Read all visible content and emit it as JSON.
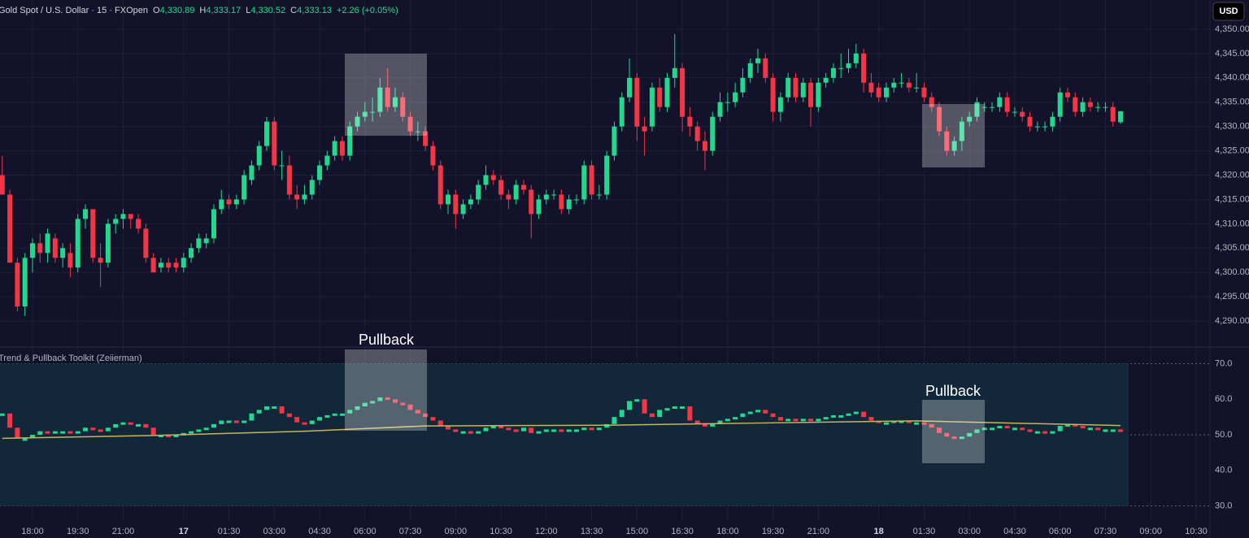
{
  "header": {
    "symbol": "Gold Spot / U.S. Dollar · 15 · FXOpen",
    "o_label": "O",
    "o": "4,330.89",
    "h_label": "H",
    "h": "4,333.17",
    "l_label": "L",
    "l": "4,330.52",
    "c_label": "C",
    "c": "4,333.13",
    "change": "+2.26 (+0.05%)",
    "currency": "USD"
  },
  "annotations": [
    "Pullback",
    "Pullback"
  ],
  "chart_data": {
    "type": "candlestick",
    "up_color": "#22d88e",
    "down_color": "#f23645",
    "grid": true,
    "ylim": [
      4285,
      4356
    ],
    "yticks": [
      {
        "value": 4290,
        "label": "4,290.00"
      },
      {
        "value": 4295,
        "label": "4,295.00"
      },
      {
        "value": 4300,
        "label": "4,300.00"
      },
      {
        "value": 4305,
        "label": "4,305.00"
      },
      {
        "value": 4310,
        "label": "4,310.00"
      },
      {
        "value": 4315,
        "label": "4,315.00"
      },
      {
        "value": 4320,
        "label": "4,320.00"
      },
      {
        "value": 4325,
        "label": "4,325.00"
      },
      {
        "value": 4330,
        "label": "4,330.00"
      },
      {
        "value": 4335,
        "label": "4,335.00"
      },
      {
        "value": 4340,
        "label": "4,340.00"
      },
      {
        "value": 4345,
        "label": "4,345.00"
      },
      {
        "value": 4350,
        "label": "4,350.00"
      }
    ],
    "xlim": [
      -0.3,
      165
    ],
    "xticks": [
      {
        "value": 4,
        "label": "18:00"
      },
      {
        "value": 10,
        "label": "19:30"
      },
      {
        "value": 16,
        "label": "21:00"
      },
      {
        "value": 24,
        "label": "17"
      },
      {
        "value": 30,
        "label": "01:30"
      },
      {
        "value": 36,
        "label": "03:00"
      },
      {
        "value": 42,
        "label": "04:30"
      },
      {
        "value": 48,
        "label": "06:00"
      },
      {
        "value": 54,
        "label": "07:30"
      },
      {
        "value": 60,
        "label": "09:00"
      },
      {
        "value": 66,
        "label": "10:30"
      },
      {
        "value": 72,
        "label": "12:00"
      },
      {
        "value": 78,
        "label": "13:30"
      },
      {
        "value": 84,
        "label": "15:00"
      },
      {
        "value": 90,
        "label": "16:30"
      },
      {
        "value": 96,
        "label": "18:00"
      },
      {
        "value": 102,
        "label": "19:30"
      },
      {
        "value": 108,
        "label": "21:00"
      },
      {
        "value": 116,
        "label": "18"
      },
      {
        "value": 122,
        "label": "01:30"
      },
      {
        "value": 128,
        "label": "03:00"
      },
      {
        "value": 134,
        "label": "04:30"
      },
      {
        "value": 140,
        "label": "06:00"
      },
      {
        "value": 146,
        "label": "07:30"
      },
      {
        "value": 152,
        "label": "09:00"
      },
      {
        "value": 158,
        "label": "10:30"
      }
    ],
    "candles": [
      [
        4320,
        4324,
        4316,
        4316
      ],
      [
        4316,
        4317,
        4302,
        4302
      ],
      [
        4302,
        4303,
        4292,
        4293
      ],
      [
        4293,
        4304,
        4291,
        4303
      ],
      [
        4303,
        4307,
        4300,
        4306
      ],
      [
        4306,
        4308,
        4302,
        4304
      ],
      [
        4304,
        4309,
        4302,
        4308
      ],
      [
        4307,
        4308,
        4302,
        4303
      ],
      [
        4303,
        4306,
        4301,
        4305
      ],
      [
        4304,
        4306,
        4299,
        4301
      ],
      [
        4301,
        4312,
        4300,
        4311
      ],
      [
        4311,
        4314,
        4309,
        4313
      ],
      [
        4313,
        4313,
        4302,
        4303
      ],
      [
        4303,
        4306,
        4297,
        4302
      ],
      [
        4302,
        4311,
        4301,
        4310
      ],
      [
        4310,
        4312,
        4308,
        4311
      ],
      [
        4311,
        4313,
        4309,
        4312
      ],
      [
        4312,
        4312,
        4309,
        4311
      ],
      [
        4311,
        4312,
        4308,
        4309
      ],
      [
        4309,
        4310,
        4302,
        4303
      ],
      [
        4303,
        4304,
        4300,
        4300
      ],
      [
        4301,
        4303,
        4300,
        4302
      ],
      [
        4302,
        4303,
        4300,
        4301
      ],
      [
        4302,
        4303,
        4300,
        4301
      ],
      [
        4301,
        4304,
        4300,
        4303
      ],
      [
        4303,
        4306,
        4302,
        4305
      ],
      [
        4305,
        4308,
        4304,
        4307
      ],
      [
        4306,
        4308,
        4305,
        4307
      ],
      [
        4307,
        4314,
        4306,
        4313
      ],
      [
        4313,
        4317,
        4312,
        4315
      ],
      [
        4315,
        4316,
        4313,
        4314
      ],
      [
        4314,
        4316,
        4313,
        4315
      ],
      [
        4315,
        4321,
        4314,
        4320
      ],
      [
        4319,
        4323,
        4318,
        4322
      ],
      [
        4322,
        4327,
        4321,
        4326
      ],
      [
        4326,
        4332,
        4325,
        4331
      ],
      [
        4331,
        4332,
        4321,
        4322
      ],
      [
        4322,
        4325,
        4319,
        4322
      ],
      [
        4322,
        4324,
        4315,
        4316
      ],
      [
        4316,
        4318,
        4313,
        4315
      ],
      [
        4315,
        4318,
        4314,
        4316
      ],
      [
        4316,
        4320,
        4315,
        4319
      ],
      [
        4319,
        4323,
        4318,
        4322
      ],
      [
        4322,
        4325,
        4321,
        4324
      ],
      [
        4324,
        4328,
        4323,
        4327
      ],
      [
        4327,
        4328,
        4323,
        4324
      ],
      [
        4324,
        4331,
        4323,
        4330
      ],
      [
        4330,
        4333,
        4329,
        4332
      ],
      [
        4332,
        4335,
        4331,
        4333
      ],
      [
        4333,
        4336,
        4331,
        4333
      ],
      [
        4333,
        4340,
        4332,
        4338
      ],
      [
        4338,
        4342,
        4333,
        4334
      ],
      [
        4334,
        4338,
        4333,
        4336
      ],
      [
        4336,
        4337,
        4331,
        4332
      ],
      [
        4332,
        4333,
        4328,
        4329
      ],
      [
        4329,
        4331,
        4327,
        4329
      ],
      [
        4329,
        4330,
        4325,
        4326
      ],
      [
        4326,
        4327,
        4321,
        4322
      ],
      [
        4322,
        4323,
        4313,
        4314
      ],
      [
        4314,
        4317,
        4312,
        4316
      ],
      [
        4316,
        4317,
        4309,
        4312
      ],
      [
        4312,
        4315,
        4311,
        4314
      ],
      [
        4314,
        4316,
        4313,
        4315
      ],
      [
        4315,
        4319,
        4314,
        4318
      ],
      [
        4318,
        4322,
        4317,
        4320
      ],
      [
        4320,
        4321,
        4318,
        4319
      ],
      [
        4319,
        4320,
        4315,
        4316
      ],
      [
        4316,
        4317,
        4313,
        4315
      ],
      [
        4315,
        4319,
        4314,
        4318
      ],
      [
        4318,
        4319,
        4316,
        4317
      ],
      [
        4317,
        4318,
        4307,
        4312
      ],
      [
        4312,
        4316,
        4311,
        4315
      ],
      [
        4315,
        4317,
        4314,
        4316
      ],
      [
        4316,
        4317,
        4315,
        4316
      ],
      [
        4316,
        4317,
        4312,
        4313
      ],
      [
        4313,
        4316,
        4312,
        4315
      ],
      [
        4315,
        4316,
        4314,
        4315
      ],
      [
        4315,
        4323,
        4314,
        4322
      ],
      [
        4322,
        4323,
        4315,
        4316
      ],
      [
        4316,
        4318,
        4315,
        4316
      ],
      [
        4316,
        4325,
        4315,
        4324
      ],
      [
        4324,
        4331,
        4323,
        4330
      ],
      [
        4330,
        4337,
        4329,
        4336
      ],
      [
        4336,
        4344,
        4335,
        4340
      ],
      [
        4340,
        4341,
        4327,
        4330
      ],
      [
        4330,
        4332,
        4324,
        4329
      ],
      [
        4330,
        4339,
        4329,
        4338
      ],
      [
        4338,
        4340,
        4333,
        4334
      ],
      [
        4334,
        4341,
        4333,
        4340
      ],
      [
        4340,
        4349,
        4338,
        4342
      ],
      [
        4342,
        4343,
        4329,
        4332
      ],
      [
        4332,
        4334,
        4328,
        4330
      ],
      [
        4330,
        4331,
        4325,
        4327
      ],
      [
        4327,
        4329,
        4321,
        4325
      ],
      [
        4325,
        4333,
        4324,
        4332
      ],
      [
        4332,
        4337,
        4331,
        4335
      ],
      [
        4335,
        4337,
        4333,
        4335
      ],
      [
        4335,
        4339,
        4334,
        4337
      ],
      [
        4337,
        4342,
        4336,
        4340
      ],
      [
        4340,
        4344,
        4339,
        4343
      ],
      [
        4343,
        4346,
        4341,
        4344
      ],
      [
        4344,
        4345,
        4339,
        4340
      ],
      [
        4340,
        4341,
        4331,
        4333
      ],
      [
        4333,
        4337,
        4331,
        4336
      ],
      [
        4336,
        4341,
        4335,
        4340
      ],
      [
        4340,
        4341,
        4335,
        4336
      ],
      [
        4336,
        4340,
        4335,
        4339
      ],
      [
        4339,
        4340,
        4330,
        4334
      ],
      [
        4334,
        4340,
        4333,
        4339
      ],
      [
        4339,
        4341,
        4338,
        4340
      ],
      [
        4340,
        4343,
        4339,
        4342
      ],
      [
        4342,
        4345,
        4340,
        4342
      ],
      [
        4342,
        4346,
        4341,
        4343
      ],
      [
        4343,
        4347,
        4342,
        4345
      ],
      [
        4345,
        4346,
        4337,
        4339
      ],
      [
        4339,
        4341,
        4336,
        4337
      ],
      [
        4338,
        4339,
        4335,
        4336
      ],
      [
        4336,
        4339,
        4335,
        4338
      ],
      [
        4338,
        4340,
        4337,
        4339
      ],
      [
        4339,
        4341,
        4338,
        4339
      ],
      [
        4339,
        4340,
        4337,
        4338
      ],
      [
        4338,
        4341,
        4337,
        4338
      ],
      [
        4338,
        4339,
        4335,
        4336
      ],
      [
        4336,
        4337,
        4333,
        4334
      ],
      [
        4334,
        4335,
        4328,
        4329
      ],
      [
        4329,
        4330,
        4324,
        4325
      ],
      [
        4325,
        4328,
        4324,
        4327
      ],
      [
        4327,
        4332,
        4325,
        4331
      ],
      [
        4331,
        4333,
        4330,
        4332
      ],
      [
        4332,
        4336,
        4331,
        4335
      ],
      [
        4334,
        4335,
        4333,
        4334
      ],
      [
        4334,
        4335,
        4333,
        4334
      ],
      [
        4334,
        4337,
        4333,
        4336
      ],
      [
        4336,
        4337,
        4332,
        4333
      ],
      [
        4333,
        4334,
        4332,
        4333
      ],
      [
        4333,
        4334,
        4331,
        4332
      ],
      [
        4332,
        4333,
        4329,
        4330
      ],
      [
        4330,
        4331,
        4329,
        4330
      ],
      [
        4330,
        4331,
        4329,
        4330
      ],
      [
        4330,
        4333,
        4329,
        4332
      ],
      [
        4332,
        4338,
        4331,
        4337
      ],
      [
        4337,
        4338,
        4335,
        4336
      ],
      [
        4336,
        4337,
        4332,
        4333
      ],
      [
        4333,
        4336,
        4332,
        4335
      ],
      [
        4335,
        4336,
        4333,
        4334
      ],
      [
        4334,
        4335,
        4333,
        4334
      ],
      [
        4334,
        4335,
        4333,
        4334
      ],
      [
        4334,
        4335,
        4330,
        4331
      ],
      [
        4330.89,
        4333.17,
        4330.52,
        4333.13
      ]
    ],
    "indicator": {
      "title": "Trend & Pullback Toolkit (Zeiierman)",
      "ylim": [
        26,
        74
      ],
      "yticks": [
        {
          "value": 30,
          "label": "30.0"
        },
        {
          "value": 40,
          "label": "40.0"
        },
        {
          "value": 50,
          "label": "50.0"
        },
        {
          "value": 60,
          "label": "60.0"
        },
        {
          "value": 70,
          "label": "70.0"
        }
      ],
      "band": [
        30,
        70
      ],
      "levels": [
        30,
        50,
        70
      ],
      "signal_color": "#c9b458",
      "values": [
        56,
        52,
        49,
        49,
        50,
        51,
        50.5,
        51,
        51,
        50.5,
        51,
        52,
        51.5,
        51,
        52,
        53,
        53.5,
        53,
        53,
        52,
        50,
        50,
        49.5,
        50,
        50.5,
        51,
        51.5,
        52,
        53,
        54,
        54,
        53.5,
        54,
        56,
        57,
        58,
        58,
        56,
        55,
        53.5,
        53,
        54,
        55,
        55.5,
        56,
        56,
        57,
        58,
        59,
        59.5,
        60.5,
        60,
        59,
        58.5,
        57,
        56,
        55,
        54,
        52.5,
        51.5,
        51,
        51,
        50.5,
        51,
        52,
        52.5,
        52,
        51.5,
        51,
        52,
        50.5,
        51,
        51.5,
        51.5,
        51,
        51.5,
        51.5,
        52,
        51.5,
        52,
        53,
        55,
        57,
        59.5,
        60,
        56,
        55,
        57,
        57.5,
        58,
        58,
        54,
        53,
        52.5,
        53,
        54,
        54.5,
        55,
        56,
        56.5,
        57,
        56,
        55,
        54,
        54.5,
        54,
        54.5,
        54,
        54.5,
        55,
        55.5,
        55.5,
        56,
        56.5,
        55,
        54,
        53.5,
        53.5,
        54,
        54,
        53.5,
        53.5,
        53,
        52,
        50.5,
        49.5,
        49,
        49.5,
        50.5,
        51.5,
        52,
        52,
        52.5,
        52,
        52,
        51.5,
        51,
        51,
        50.5,
        51,
        52.5,
        53,
        52.5,
        52,
        52,
        51.5,
        51.5,
        51.5,
        51
      ],
      "signal": {
        "x": [
          0,
          20,
          40,
          56,
          80,
          100,
          121,
          148
        ],
        "values": [
          49,
          49.8,
          51,
          52.5,
          52.7,
          53.3,
          53.9,
          52.6
        ]
      }
    }
  }
}
